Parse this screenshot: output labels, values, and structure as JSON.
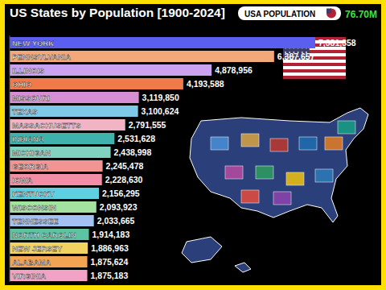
{
  "chart_data": {
    "type": "bar",
    "title": "US States by Population [1900-2024]",
    "orientation": "horizontal",
    "data_labels": true,
    "tick_labels": false,
    "grid": false,
    "annotations": [
      "USA POPULATION",
      "76.70M"
    ],
    "categories": [
      "NEW YORK",
      "PENNSYLVANIA",
      "ILLINOIS",
      "OHIO",
      "MISSOURI",
      "TEXAS",
      "MASSACHUSETTS",
      "INDIANA",
      "MICHIGAN",
      "GEORGIA",
      "IOWA",
      "KENTUCKY",
      "WISCONSIN",
      "TENNESSEE",
      "NORTH CAROLIN",
      "NEW JERSEY",
      "ALABAMA",
      "VIRGINIA"
    ],
    "values": [
      7381358,
      6387657,
      4878956,
      4193588,
      3119850,
      3100624,
      2791555,
      2531628,
      2438998,
      2245478,
      2228630,
      2156295,
      2093923,
      2033665,
      1914183,
      1886963,
      1875624,
      1875183
    ],
    "value_labels": [
      "7,381,358",
      "6,387,657",
      "4,878,956",
      "4,193,588",
      "3,119,850",
      "3,100,624",
      "2,791,555",
      "2,531,628",
      "2,438,998",
      "2,245,478",
      "2,228,630",
      "2,156,295",
      "2,093,923",
      "2,033,665",
      "1,914,183",
      "1,886,963",
      "1,875,624",
      "1,875,183"
    ],
    "colors": [
      "#5b5ff0",
      "#f2a878",
      "#c9a2f2",
      "#f07a4a",
      "#d58fd2",
      "#7ec8e8",
      "#f2b3c4",
      "#3fb2ae",
      "#82d2c2",
      "#f29494",
      "#f28fa6",
      "#5ed0e2",
      "#a3e2a0",
      "#a3c2f2",
      "#5cc4a2",
      "#f2d260",
      "#f2a452",
      "#f2a2c4"
    ],
    "xlim": [
      0,
      7381358
    ]
  }
}
